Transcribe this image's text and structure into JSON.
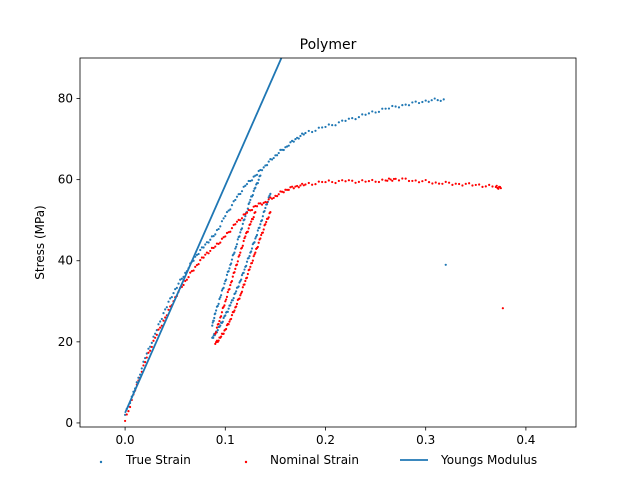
{
  "chart_data": {
    "type": "scatter",
    "title": "Polymer",
    "xlabel": "",
    "ylabel": "Stress (MPa)",
    "xlim": [
      -0.045,
      0.45
    ],
    "ylim": [
      -1,
      90
    ],
    "xticks": [
      "0.0",
      "0.1",
      "0.2",
      "0.3",
      "0.4"
    ],
    "xtick_values": [
      0.0,
      0.1,
      0.2,
      0.3,
      0.4
    ],
    "yticks": [
      "0",
      "20",
      "40",
      "60",
      "80"
    ],
    "ytick_values": [
      0,
      20,
      40,
      60,
      80
    ],
    "grid": false,
    "legend_position": "bottom",
    "series": [
      {
        "name": "True Strain",
        "kind": "scatter",
        "color": "#1f77b4",
        "points": [
          [
            0.0,
            2.0
          ],
          [
            0.01,
            8.5
          ],
          [
            0.02,
            16.0
          ],
          [
            0.03,
            22.0
          ],
          [
            0.04,
            28.0
          ],
          [
            0.05,
            33.0
          ],
          [
            0.06,
            37.0
          ],
          [
            0.07,
            41.0
          ],
          [
            0.08,
            44.0
          ],
          [
            0.09,
            46.5
          ],
          [
            0.1,
            51.0
          ],
          [
            0.11,
            55.0
          ],
          [
            0.12,
            58.5
          ],
          [
            0.13,
            61.0
          ],
          [
            0.14,
            63.5
          ],
          [
            0.15,
            66.0
          ],
          [
            0.16,
            68.0
          ],
          [
            0.17,
            70.0
          ],
          [
            0.18,
            71.5
          ],
          [
            0.2,
            73.0
          ],
          [
            0.22,
            74.5
          ],
          [
            0.24,
            76.0
          ],
          [
            0.26,
            77.5
          ],
          [
            0.28,
            78.5
          ],
          [
            0.3,
            79.5
          ],
          [
            0.318,
            79.8
          ],
          [
            0.087,
            21.0
          ],
          [
            0.09,
            22.0
          ],
          [
            0.095,
            24.0
          ],
          [
            0.1,
            26.5
          ],
          [
            0.105,
            29.0
          ],
          [
            0.11,
            32.0
          ],
          [
            0.115,
            35.0
          ],
          [
            0.12,
            38.5
          ],
          [
            0.125,
            42.0
          ],
          [
            0.13,
            45.5
          ],
          [
            0.135,
            49.0
          ],
          [
            0.14,
            53.0
          ],
          [
            0.145,
            56.5
          ],
          [
            0.087,
            24.0
          ],
          [
            0.09,
            27.0
          ],
          [
            0.095,
            31.0
          ],
          [
            0.1,
            35.0
          ],
          [
            0.105,
            39.0
          ],
          [
            0.11,
            43.0
          ],
          [
            0.115,
            47.0
          ],
          [
            0.12,
            51.0
          ],
          [
            0.125,
            55.0
          ],
          [
            0.13,
            58.0
          ],
          [
            0.135,
            61.0
          ],
          [
            0.32,
            39.0
          ]
        ]
      },
      {
        "name": "Nominal Strain",
        "kind": "scatter",
        "color": "#ff0000",
        "points": [
          [
            0.0,
            0.5
          ],
          [
            0.01,
            8.0
          ],
          [
            0.02,
            15.0
          ],
          [
            0.03,
            21.0
          ],
          [
            0.04,
            26.0
          ],
          [
            0.05,
            31.0
          ],
          [
            0.06,
            35.0
          ],
          [
            0.07,
            38.5
          ],
          [
            0.08,
            41.5
          ],
          [
            0.09,
            43.5
          ],
          [
            0.1,
            46.0
          ],
          [
            0.11,
            49.0
          ],
          [
            0.12,
            51.5
          ],
          [
            0.13,
            53.5
          ],
          [
            0.14,
            54.5
          ],
          [
            0.15,
            56.0
          ],
          [
            0.16,
            57.5
          ],
          [
            0.17,
            58.3
          ],
          [
            0.18,
            58.8
          ],
          [
            0.2,
            59.4
          ],
          [
            0.22,
            59.6
          ],
          [
            0.24,
            59.5
          ],
          [
            0.26,
            59.8
          ],
          [
            0.27,
            60.2
          ],
          [
            0.29,
            59.8
          ],
          [
            0.31,
            59.3
          ],
          [
            0.33,
            59.0
          ],
          [
            0.35,
            58.7
          ],
          [
            0.37,
            58.2
          ],
          [
            0.375,
            57.9
          ],
          [
            0.09,
            19.5
          ],
          [
            0.095,
            21.0
          ],
          [
            0.1,
            23.0
          ],
          [
            0.105,
            25.5
          ],
          [
            0.11,
            28.5
          ],
          [
            0.115,
            31.5
          ],
          [
            0.12,
            35.0
          ],
          [
            0.125,
            38.5
          ],
          [
            0.13,
            42.0
          ],
          [
            0.135,
            45.5
          ],
          [
            0.14,
            49.0
          ],
          [
            0.145,
            52.0
          ],
          [
            0.09,
            22.0
          ],
          [
            0.095,
            26.0
          ],
          [
            0.1,
            30.0
          ],
          [
            0.105,
            34.0
          ],
          [
            0.11,
            38.0
          ],
          [
            0.115,
            42.0
          ],
          [
            0.12,
            46.0
          ],
          [
            0.125,
            49.0
          ],
          [
            0.13,
            52.0
          ],
          [
            0.377,
            28.3
          ]
        ]
      },
      {
        "name": "Youngs Modulus",
        "kind": "line",
        "color": "#1f77b4",
        "points": [
          [
            0.0,
            2.5
          ],
          [
            0.156,
            90.0
          ]
        ]
      }
    ]
  }
}
